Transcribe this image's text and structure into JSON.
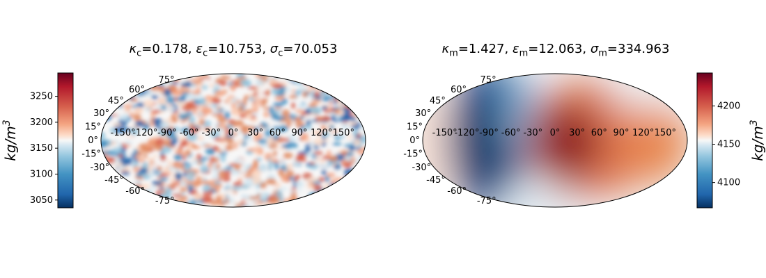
{
  "chart_data": [
    {
      "type": "heatmap",
      "projection": "Mollweide",
      "title_parts": {
        "k": "0.178",
        "e": "10.753",
        "s": "70.053",
        "sub": "c"
      },
      "colorbar": {
        "label_base": "kg/m",
        "label_exp": "3",
        "range": [
          3035,
          3295
        ],
        "ticks": [
          "3050",
          "3100",
          "3150",
          "3200",
          "3250"
        ],
        "tick_values": [
          3050,
          3100,
          3150,
          3200,
          3250
        ],
        "side": "left"
      },
      "colormap": "RdBu_r",
      "pattern": "small-scale-noise",
      "lon_ticks": [
        "-150°",
        "-120°",
        "-90°",
        "-60°",
        "-30°",
        "0°",
        "30°",
        "60°",
        "90°",
        "120°",
        "150°"
      ],
      "lat_ticks": [
        "75°",
        "60°",
        "45°",
        "30°",
        "15°",
        "0°",
        "-15°",
        "-30°",
        "-45°",
        "-60°",
        "-75°"
      ],
      "grid": false
    },
    {
      "type": "heatmap",
      "projection": "Mollweide",
      "title_parts": {
        "k": "1.427",
        "e": "12.063",
        "s": "334.963",
        "sub": "m"
      },
      "colorbar": {
        "label_base": "kg/m",
        "label_exp": "3",
        "range": [
          4067,
          4243
        ],
        "ticks": [
          "4100",
          "4150",
          "4200"
        ],
        "tick_values": [
          4100,
          4150,
          4200
        ],
        "side": "right"
      },
      "colormap": "RdBu_r",
      "pattern": "large-scale-smooth",
      "lon_ticks": [
        "-150°",
        "-120°",
        "-90°",
        "-60°",
        "-30°",
        "0°",
        "30°",
        "60°",
        "90°",
        "120°",
        "150°"
      ],
      "lat_ticks": [
        "75°",
        "60°",
        "45°",
        "30°",
        "15°",
        "0°",
        "-15°",
        "-30°",
        "-45°",
        "-60°",
        "-75°"
      ],
      "grid": false
    }
  ]
}
